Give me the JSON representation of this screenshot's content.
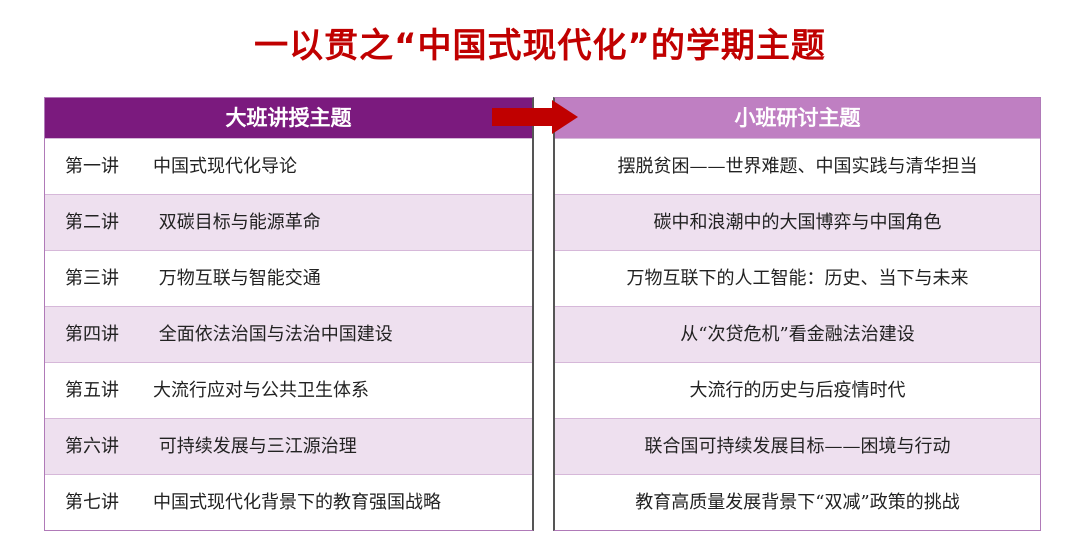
{
  "title": "一以贯之“中国式现代化”的学期主题",
  "left": {
    "header": "大班讲授主题",
    "rows": [
      {
        "num": "第一讲",
        "topic": "中国式现代化导论"
      },
      {
        "num": "第二讲",
        "topic": " 双碳目标与能源革命"
      },
      {
        "num": "第三讲",
        "topic": " 万物互联与智能交通"
      },
      {
        "num": "第四讲",
        "topic": " 全面依法治国与法治中国建设"
      },
      {
        "num": "第五讲",
        "topic": "大流行应对与公共卫生体系"
      },
      {
        "num": "第六讲",
        "topic": " 可持续发展与三江源治理"
      },
      {
        "num": "第七讲",
        "topic": "中国式现代化背景下的教育强国战略"
      }
    ]
  },
  "right": {
    "header": "小班研讨主题",
    "rows": [
      "摆脱贫困——世界难题、中国实践与清华担当",
      "碳中和浪潮中的大国博弈与中国角色",
      "万物互联下的人工智能：历史、当下与未来",
      "从“次贷危机”看金融法治建设",
      "大流行的历史与后疫情时代",
      "联合国可持续发展目标——困境与行动",
      "教育高质量发展背景下“双减”政策的挑战"
    ]
  },
  "colors": {
    "title": "#C00000",
    "left_header": "#7B1A7E",
    "right_header": "#BF7FC2",
    "arrow": "#C00000",
    "row_shade": "#EEE0EF"
  },
  "icons": {
    "arrow": "right-arrow-icon"
  }
}
